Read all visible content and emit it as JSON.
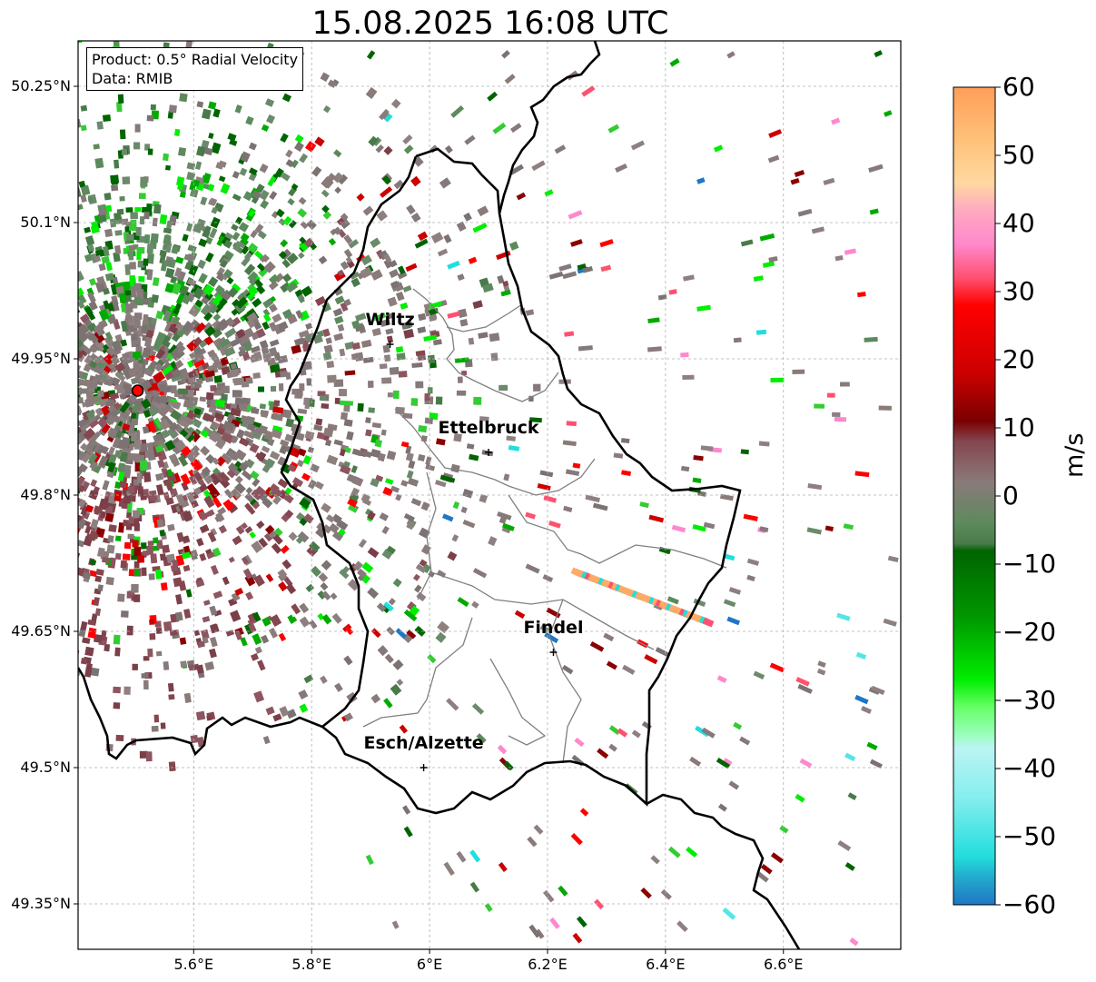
{
  "title": "15.08.2025 16:08 UTC",
  "info": {
    "product": "Product: 0.5° Radial Velocity",
    "data_source": "Data: RMIB"
  },
  "axes": {
    "lon_ticks": [
      5.6,
      5.8,
      6.0,
      6.2,
      6.4,
      6.6
    ],
    "lon_tick_labels": [
      "5.6°E",
      "5.8°E",
      "6°E",
      "6.2°E",
      "6.4°E",
      "6.6°E"
    ],
    "lat_ticks": [
      50.25,
      50.1,
      49.95,
      49.8,
      49.65,
      49.5,
      49.35
    ],
    "lat_tick_labels": [
      "50.25°N",
      "50.1°N",
      "49.95°N",
      "49.8°N",
      "49.65°N",
      "49.5°N",
      "49.35°N"
    ],
    "lon_range": [
      5.404,
      6.799
    ],
    "lat_range": [
      49.3,
      50.3
    ],
    "grid": true
  },
  "cities": [
    {
      "name": "Wiltz",
      "lon": 5.933,
      "lat": 49.966
    },
    {
      "name": "Ettelbruck",
      "lon": 6.1,
      "lat": 49.847
    },
    {
      "name": "Findel",
      "lon": 6.21,
      "lat": 49.627
    },
    {
      "name": "Esch/Alzette",
      "lon": 5.99,
      "lat": 49.5
    }
  ],
  "radar_site": {
    "lon": 5.505,
    "lat": 49.915,
    "color": "#ff0000"
  },
  "colorbar": {
    "label": "m/s",
    "min": -60,
    "max": 60,
    "ticks": [
      60,
      50,
      40,
      30,
      20,
      10,
      0,
      -10,
      -20,
      -30,
      -40,
      -50,
      -60
    ],
    "tick_labels": [
      "60",
      "50",
      "40",
      "30",
      "20",
      "10",
      "0",
      "−10",
      "−20",
      "−30",
      "−40",
      "−50",
      "−60"
    ],
    "stops": [
      {
        "v": 60,
        "color": "#ff9e59"
      },
      {
        "v": 52,
        "color": "#ffc27a"
      },
      {
        "v": 46,
        "color": "#ffd8a0"
      },
      {
        "v": 42,
        "color": "#ffaac0"
      },
      {
        "v": 37,
        "color": "#ff88cc"
      },
      {
        "v": 32,
        "color": "#ff5070"
      },
      {
        "v": 28,
        "color": "#ff0000"
      },
      {
        "v": 18,
        "color": "#cc0000"
      },
      {
        "v": 11,
        "color": "#7a0000"
      },
      {
        "v": 8,
        "color": "#84464f"
      },
      {
        "v": 2,
        "color": "#8a7a7a"
      },
      {
        "v": -4,
        "color": "#5d8a5d"
      },
      {
        "v": -7,
        "color": "#4a7a4a"
      },
      {
        "v": -8,
        "color": "#006400"
      },
      {
        "v": -18,
        "color": "#009900"
      },
      {
        "v": -27,
        "color": "#00ee00"
      },
      {
        "v": -31,
        "color": "#66ff66"
      },
      {
        "v": -35,
        "color": "#99ffbb"
      },
      {
        "v": -37,
        "color": "#bbf4f4"
      },
      {
        "v": -44,
        "color": "#88eeee"
      },
      {
        "v": -53,
        "color": "#22dddd"
      },
      {
        "v": -56,
        "color": "#22aacc"
      },
      {
        "v": -60,
        "color": "#1f77c4"
      }
    ]
  }
}
